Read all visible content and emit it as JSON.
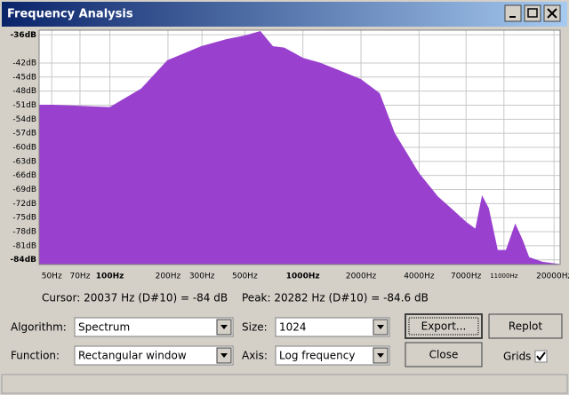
{
  "window": {
    "title": "Frequency Analysis"
  },
  "chart_data": {
    "type": "area",
    "color": "#9a40cf",
    "xscale": "log",
    "grid": true,
    "x": [
      43,
      51,
      100,
      146,
      199,
      298,
      402,
      502,
      601,
      697,
      800,
      1000,
      1220,
      1508,
      1988,
      2489,
      2978,
      3972,
      4977,
      6000,
      6999,
      7850,
      8490,
      9140,
      10180,
      11300,
      12600,
      13760,
      14800,
      17400,
      21400
    ],
    "values": [
      -51,
      -51,
      -51.5,
      -47.5,
      -41.5,
      -38.5,
      -37,
      -36.2,
      -35.3,
      -38.5,
      -38.8,
      -41,
      -42,
      -43.5,
      -45.5,
      -48.5,
      -57,
      -65.5,
      -70.5,
      -73.5,
      -76,
      -77.5,
      -70.5,
      -73,
      -82,
      -82,
      -76.5,
      -80,
      -83.5,
      -84.5,
      -85
    ],
    "xlim": [
      43,
      21500
    ],
    "ylim": [
      -85,
      -35
    ],
    "xticks": [
      {
        "value": 50,
        "label": "50Hz"
      },
      {
        "value": 70,
        "label": "70Hz"
      },
      {
        "value": 100,
        "label": "100Hz"
      },
      {
        "value": 200,
        "label": "200Hz"
      },
      {
        "value": 300,
        "label": "300Hz"
      },
      {
        "value": 500,
        "label": "500Hz"
      },
      {
        "value": 1000,
        "label": "1000Hz"
      },
      {
        "value": 2000,
        "label": "2000Hz"
      },
      {
        "value": 4000,
        "label": "4000Hz"
      },
      {
        "value": 7000,
        "label": "7000Hz"
      },
      {
        "value": 11000,
        "label": "11000Hz"
      },
      {
        "value": 20000,
        "label": "20000Hz"
      }
    ],
    "yticks": [
      {
        "value": -36,
        "label": "-36dB"
      },
      {
        "value": -42,
        "label": "-42dB"
      },
      {
        "value": -45,
        "label": "-45dB"
      },
      {
        "value": -48,
        "label": "-48dB"
      },
      {
        "value": -51,
        "label": "-51dB"
      },
      {
        "value": -54,
        "label": "-54dB"
      },
      {
        "value": -57,
        "label": "-57dB"
      },
      {
        "value": -60,
        "label": "-60dB"
      },
      {
        "value": -63,
        "label": "-63dB"
      },
      {
        "value": -66,
        "label": "-66dB"
      },
      {
        "value": -69,
        "label": "-69dB"
      },
      {
        "value": -72,
        "label": "-72dB"
      },
      {
        "value": -75,
        "label": "-75dB"
      },
      {
        "value": -78,
        "label": "-78dB"
      },
      {
        "value": -81,
        "label": "-81dB"
      },
      {
        "value": -84,
        "label": "-84dB"
      }
    ]
  },
  "status": {
    "cursor": "Cursor: 20037 Hz (D#10) = -84 dB",
    "peak": "Peak: 20282 Hz (D#10) = -84.6 dB"
  },
  "controls": {
    "algorithm_label": "Algorithm:",
    "algorithm": "Spectrum",
    "size_label": "Size:",
    "size": "1024",
    "function_label": "Function:",
    "function": "Rectangular window",
    "axis_label": "Axis:",
    "axis": "Log frequency",
    "export": "Export...",
    "replot": "Replot",
    "close": "Close",
    "grids": "Grids"
  }
}
